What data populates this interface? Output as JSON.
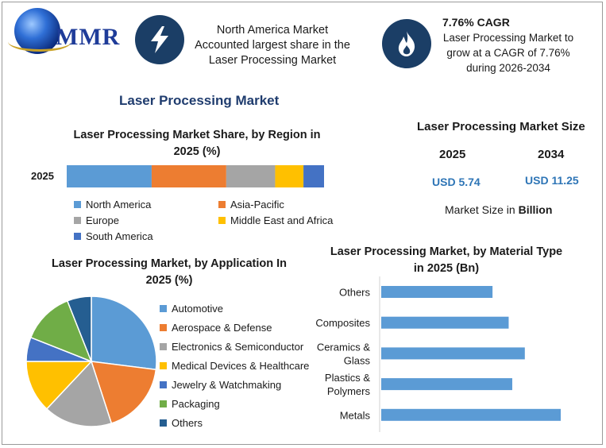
{
  "header": {
    "logo_text": "MMR",
    "info1": {
      "icon": "lightning-icon",
      "lines": [
        "North America Market",
        "Accounted largest share in the",
        "Laser Processing Market"
      ]
    },
    "info2": {
      "icon": "flame-icon",
      "title": "7.76% CAGR",
      "lines": [
        "Laser Processing Market to",
        "grow at a CAGR of 7.76%",
        "during 2026-2034"
      ]
    }
  },
  "main_title": "Laser Processing Market",
  "market_size": {
    "title": "Laser Processing Market Size",
    "years": [
      "2025",
      "2034"
    ],
    "values": [
      "USD 5.74",
      "USD 11.25"
    ],
    "note_prefix": "Market Size in ",
    "note_unit": "Billion"
  },
  "colors": {
    "blue": "#5b9bd5",
    "orange": "#ed7d31",
    "gray": "#a5a5a5",
    "yellow": "#ffc000",
    "darkblue": "#4472c4",
    "green": "#70ad47",
    "navy": "#255e91",
    "icon_bg": "#1b3e66",
    "title": "#1f3c6e"
  },
  "chart_data": [
    {
      "type": "bar",
      "orientation": "horizontal-stacked",
      "title": "Laser Processing Market Share, by Region in 2025 (%)",
      "categories": [
        "2025"
      ],
      "series": [
        {
          "name": "North America",
          "values": [
            33
          ],
          "color": "#5b9bd5"
        },
        {
          "name": "Asia-Pacific",
          "values": [
            29
          ],
          "color": "#ed7d31"
        },
        {
          "name": "Europe",
          "values": [
            19
          ],
          "color": "#a5a5a5"
        },
        {
          "name": "Middle East and Africa",
          "values": [
            11
          ],
          "color": "#ffc000"
        },
        {
          "name": "South America",
          "values": [
            8
          ],
          "color": "#4472c4"
        }
      ],
      "legend": "bottom"
    },
    {
      "type": "pie",
      "title": "Laser Processing Market, by Application In 2025 (%)",
      "labels": [
        "Automotive",
        "Aerospace & Defense",
        "Electronics & Semiconductor",
        "Medical Devices & Healthcare",
        "Jewelry & Watchmaking",
        "Packaging",
        "Others"
      ],
      "values": [
        27,
        18,
        17,
        13,
        6,
        13,
        6
      ],
      "colors": [
        "#5b9bd5",
        "#ed7d31",
        "#a5a5a5",
        "#ffc000",
        "#4472c4",
        "#70ad47",
        "#255e91"
      ],
      "legend": "right"
    },
    {
      "type": "bar",
      "orientation": "horizontal",
      "title": "Laser Processing Market, by Material Type in 2025 (Bn)",
      "categories": [
        "Others",
        "Composites",
        "Ceramics & Glass",
        "Plastics & Polymers",
        "Metals"
      ],
      "category_lines": [
        [
          "Others"
        ],
        [
          "Composites"
        ],
        [
          "Ceramics &",
          "Glass"
        ],
        [
          "Plastics &",
          "Polymers"
        ],
        [
          "Metals"
        ]
      ],
      "values": [
        0.62,
        0.71,
        0.8,
        0.73,
        1.0
      ],
      "color": "#5b9bd5"
    }
  ]
}
